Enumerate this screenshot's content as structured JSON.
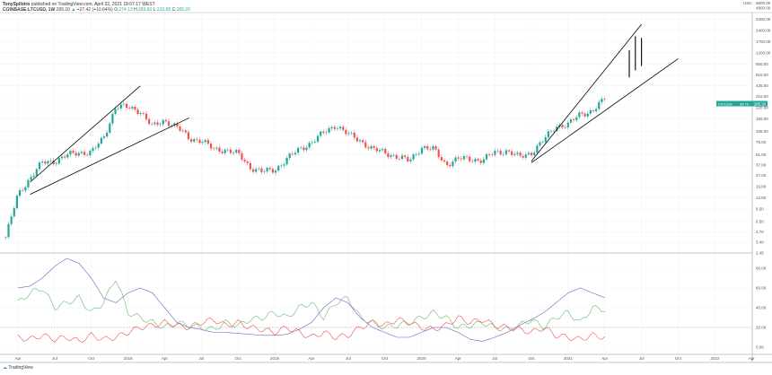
{
  "header": {
    "publisher": "TonySpilotro",
    "published": "published on TradingView.com, April 22, 2021 18:07:17 WEST",
    "symbol": "COINBASE:LTCUSD, 1W",
    "last": "285.20",
    "change": "+27.42 (+10.64%)",
    "o_label": "O:",
    "o": "274.13",
    "h_label": "H:",
    "h": "289.80",
    "l_label": "L:",
    "l": "233.85",
    "c_label": "C:",
    "c": "285.20"
  },
  "price_badge": {
    "symbol": "LTCUSD",
    "price": "285.20",
    "countdown": "3d 7h"
  },
  "footer": {
    "brand": "TradingView"
  },
  "colors": {
    "up": "#26a69a",
    "down": "#ef5350",
    "adx": "#7e57c2",
    "plus_di": "#66bb6a",
    "minus_di": "#ef5350",
    "trendline": "#000000"
  },
  "chart_data": [
    {
      "type": "candlestick",
      "scale": "log",
      "interval": "1W",
      "currency": "USD",
      "ylim": [
        2.45,
        6800
      ],
      "y_ticks": [
        "6800.00",
        "4800.00",
        "3400.00",
        "2400.00",
        "1700.00",
        "1200.00",
        "850.00",
        "610.00",
        "435.00",
        "310.00",
        "220.00",
        "155.00",
        "105.00",
        "75.00",
        "51.00",
        "37.00",
        "27.00",
        "19.00",
        "13.50",
        "9.50",
        "6.50",
        "4.70",
        "3.40",
        "2.45"
      ],
      "x_ticks": [
        "Apr",
        "Jul",
        "Oct",
        "2018",
        "Apr",
        "Jul",
        "Oct",
        "2019",
        "Apr",
        "Jul",
        "Oct",
        "2020",
        "Apr",
        "Jul",
        "Oct",
        "2021",
        "Apr",
        "Jul",
        "Oct",
        "2022",
        "Apr"
      ],
      "start_month": "2017-03",
      "monthly_closes": [
        4,
        15,
        25,
        40,
        42,
        50,
        55,
        55,
        85,
        230,
        220,
        200,
        120,
        150,
        120,
        85,
        80,
        60,
        60,
        52,
        35,
        30,
        32,
        45,
        60,
        75,
        100,
        130,
        95,
        80,
        60,
        55,
        48,
        42,
        65,
        60,
        38,
        45,
        45,
        43,
        55,
        58,
        47,
        55,
        80,
        125,
        130,
        180,
        200,
        285
      ],
      "projected_bars": [
        {
          "month": "2021-06",
          "low": 560,
          "high": 1300
        },
        {
          "month": "2021-06.5",
          "low": 700,
          "high": 2000
        },
        {
          "month": "2021-07",
          "low": 800,
          "high": 1900
        }
      ],
      "trendlines": [
        {
          "from": [
            "2017-05",
            22
          ],
          "to": [
            "2018-02",
            430
          ]
        },
        {
          "from": [
            "2017-05",
            15
          ],
          "to": [
            "2018-06",
            160
          ]
        },
        {
          "from": [
            "2020-10",
            42
          ],
          "to": [
            "2021-07",
            2900
          ]
        },
        {
          "from": [
            "2020-10",
            40
          ],
          "to": [
            "2021-10",
            1000
          ]
        }
      ],
      "grid": true
    },
    {
      "type": "line",
      "ylim": [
        -5,
        95
      ],
      "y_ticks": [
        "80.00",
        "60.00",
        "40.00",
        "20.00",
        "0.00"
      ],
      "reference_line": 20,
      "start_month": "2017-04",
      "series": [
        {
          "color": "#7e57c2",
          "values": [
            60,
            62,
            70,
            82,
            90,
            85,
            70,
            50,
            45,
            55,
            60,
            55,
            40,
            25,
            20,
            18,
            15,
            15,
            14,
            13,
            12,
            12,
            13,
            18,
            25,
            40,
            50,
            45,
            30,
            20,
            15,
            10,
            10,
            15,
            20,
            20,
            15,
            8,
            6,
            10,
            15,
            22,
            28,
            35,
            45,
            55,
            60,
            55,
            50
          ]
        },
        {
          "color": "#66bb6a",
          "values": [
            45,
            55,
            60,
            40,
            45,
            50,
            35,
            45,
            70,
            35,
            30,
            25,
            20,
            25,
            22,
            20,
            18,
            25,
            22,
            28,
            30,
            35,
            30,
            40,
            45,
            30,
            45,
            50,
            30,
            25,
            20,
            22,
            25,
            30,
            35,
            30,
            20,
            22,
            25,
            20,
            18,
            22,
            28,
            20,
            30,
            35,
            25,
            40,
            38
          ]
        },
        {
          "color": "#ef5350",
          "values": [
            10,
            8,
            12,
            8,
            10,
            6,
            12,
            8,
            10,
            15,
            20,
            22,
            25,
            22,
            20,
            25,
            28,
            22,
            25,
            20,
            18,
            15,
            20,
            15,
            10,
            15,
            10,
            12,
            20,
            25,
            22,
            28,
            25,
            20,
            18,
            22,
            30,
            25,
            28,
            22,
            20,
            18,
            15,
            20,
            12,
            10,
            8,
            12,
            10
          ]
        }
      ]
    }
  ]
}
